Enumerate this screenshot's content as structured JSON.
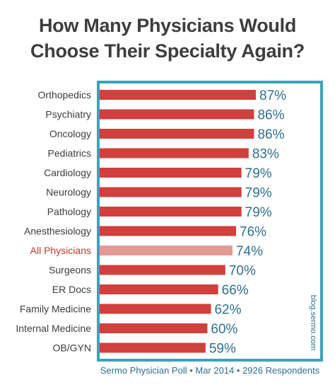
{
  "title_line1": "How Many Physicians Would",
  "title_line2": "Choose Their Specialty Again?",
  "source": "Sermo Physician Poll • Mar 2014 • 2926 Respondents",
  "watermark": "blog.sermo.com",
  "colors": {
    "bar": "#d0403d",
    "highlight_bar": "#e39994",
    "highlight_label": "#c0392b",
    "frame": "#3aa5b8",
    "value_text": "#2f6f8f",
    "label_text": "#3d3d3d"
  },
  "chart_data": {
    "type": "bar",
    "orientation": "horizontal",
    "title": "How Many Physicians Would Choose Their Specialty Again?",
    "categories": [
      "Orthopedics",
      "Psychiatry",
      "Oncology",
      "Pediatrics",
      "Cardiology",
      "Neurology",
      "Pathology",
      "Anesthesiology",
      "All Physicians",
      "Surgeons",
      "ER Docs",
      "Family Medicine",
      "Internal Medicine",
      "OB/GYN"
    ],
    "values": [
      87,
      86,
      86,
      83,
      79,
      79,
      79,
      76,
      74,
      70,
      66,
      62,
      60,
      59
    ],
    "value_labels": [
      "87%",
      "86%",
      "86%",
      "83%",
      "79%",
      "79%",
      "79%",
      "76%",
      "74%",
      "70%",
      "66%",
      "62%",
      "60%",
      "59%"
    ],
    "highlight": "All Physicians",
    "xlabel": "",
    "ylabel": "",
    "xlim": [
      0,
      100
    ],
    "grid": false,
    "legend": "none"
  }
}
